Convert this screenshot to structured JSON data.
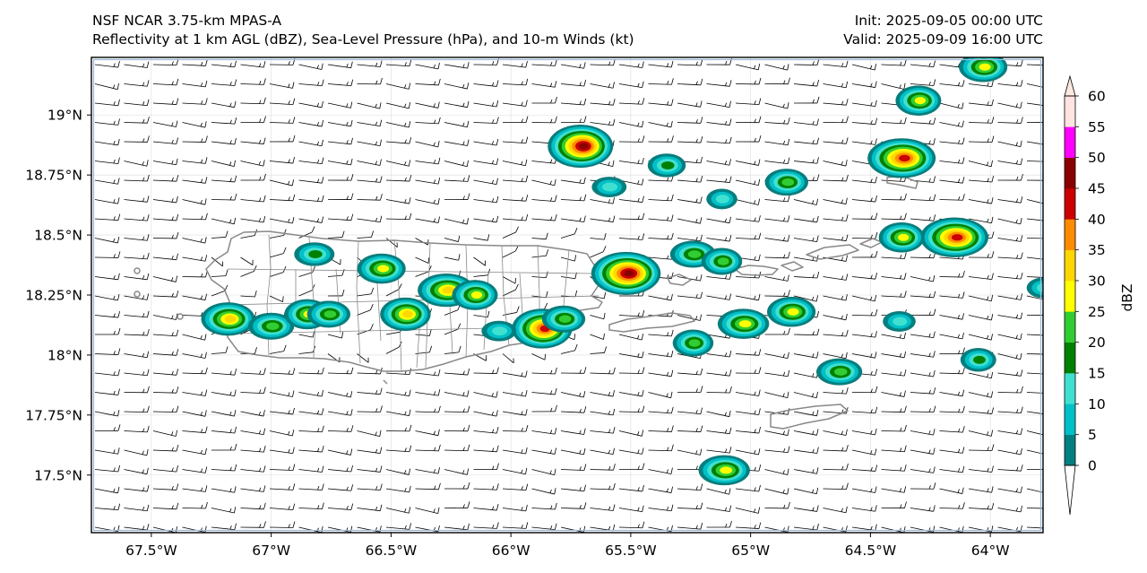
{
  "title": {
    "left_line1": "NSF NCAR 3.75-km MPAS-A",
    "left_line2": "Reflectivity at 1 km AGL (dBZ), Sea-Level Pressure (hPa), and 10-m Winds (kt)",
    "right_line1": "Init: 2025-09-05 00:00 UTC",
    "right_line2": "Valid: 2025-09-09 16:00 UTC"
  },
  "map": {
    "lon_range": [
      -67.75,
      -63.78
    ],
    "lat_range": [
      17.26,
      19.24
    ],
    "lon_ticks": [
      {
        "value": -67.5,
        "label": "67.5°W"
      },
      {
        "value": -67.0,
        "label": "67°W"
      },
      {
        "value": -66.5,
        "label": "66.5°W"
      },
      {
        "value": -66.0,
        "label": "66°W"
      },
      {
        "value": -65.5,
        "label": "65.5°W"
      },
      {
        "value": -65.0,
        "label": "65°W"
      },
      {
        "value": -64.5,
        "label": "64.5°W"
      },
      {
        "value": -64.0,
        "label": "64°W"
      }
    ],
    "lat_ticks": [
      {
        "value": 19.0,
        "label": "19°N"
      },
      {
        "value": 18.75,
        "label": "18.75°N"
      },
      {
        "value": 18.5,
        "label": "18.5°N"
      },
      {
        "value": 18.25,
        "label": "18.25°N"
      },
      {
        "value": 18.0,
        "label": "18°N"
      },
      {
        "value": 17.75,
        "label": "17.75°N"
      },
      {
        "value": 17.5,
        "label": "17.5°N"
      }
    ],
    "coast_color": "#888888",
    "gridline_color": "#dcdcdc"
  },
  "colorbar": {
    "label": "dBZ",
    "extend": "both",
    "levels": [
      0,
      5,
      10,
      15,
      20,
      25,
      30,
      35,
      40,
      45,
      50,
      55,
      60
    ],
    "tick_labels": [
      "0",
      "5",
      "10",
      "15",
      "20",
      "25",
      "30",
      "35",
      "40",
      "45",
      "50",
      "55",
      "60"
    ],
    "colors": [
      "#008080",
      "#00c0c8",
      "#40e0d0",
      "#008000",
      "#32cd32",
      "#ffff00",
      "#ffd700",
      "#ff8c00",
      "#cc0000",
      "#8b0000",
      "#ff00ff",
      "#ffe4e1"
    ],
    "under_color": "#ffffff",
    "over_color": "#ffe8e0"
  },
  "winds": {
    "barb_color": "#000000",
    "typical_direction": "east",
    "typical_speed_kt": 15
  },
  "echoes": [
    {
      "lon": -65.71,
      "lat": 18.87,
      "peak_dbz": 45
    },
    {
      "lon": -65.35,
      "lat": 18.79,
      "peak_dbz": 15
    },
    {
      "lon": -65.59,
      "lat": 18.7,
      "peak_dbz": 10
    },
    {
      "lon": -65.12,
      "lat": 18.65,
      "peak_dbz": 10
    },
    {
      "lon": -64.85,
      "lat": 18.72,
      "peak_dbz": 20
    },
    {
      "lon": -64.37,
      "lat": 18.82,
      "peak_dbz": 40
    },
    {
      "lon": -64.3,
      "lat": 19.06,
      "peak_dbz": 25
    },
    {
      "lon": -64.03,
      "lat": 19.2,
      "peak_dbz": 25
    },
    {
      "lon": -64.15,
      "lat": 18.49,
      "peak_dbz": 40
    },
    {
      "lon": -64.37,
      "lat": 18.49,
      "peak_dbz": 25
    },
    {
      "lon": -65.52,
      "lat": 18.34,
      "peak_dbz": 45
    },
    {
      "lon": -65.24,
      "lat": 18.42,
      "peak_dbz": 20
    },
    {
      "lon": -65.12,
      "lat": 18.39,
      "peak_dbz": 20
    },
    {
      "lon": -64.83,
      "lat": 18.18,
      "peak_dbz": 25
    },
    {
      "lon": -65.03,
      "lat": 18.13,
      "peak_dbz": 25
    },
    {
      "lon": -65.24,
      "lat": 18.05,
      "peak_dbz": 20
    },
    {
      "lon": -64.38,
      "lat": 18.14,
      "peak_dbz": 10
    },
    {
      "lon": -64.63,
      "lat": 17.93,
      "peak_dbz": 20
    },
    {
      "lon": -64.05,
      "lat": 17.98,
      "peak_dbz": 15
    },
    {
      "lon": -63.78,
      "lat": 18.28,
      "peak_dbz": 10
    },
    {
      "lon": -65.11,
      "lat": 17.52,
      "peak_dbz": 25
    },
    {
      "lon": -65.87,
      "lat": 18.11,
      "peak_dbz": 40
    },
    {
      "lon": -65.78,
      "lat": 18.15,
      "peak_dbz": 20
    },
    {
      "lon": -66.27,
      "lat": 18.27,
      "peak_dbz": 30
    },
    {
      "lon": -66.15,
      "lat": 18.25,
      "peak_dbz": 25
    },
    {
      "lon": -66.54,
      "lat": 18.36,
      "peak_dbz": 25
    },
    {
      "lon": -66.82,
      "lat": 18.42,
      "peak_dbz": 15
    },
    {
      "lon": -66.44,
      "lat": 18.17,
      "peak_dbz": 30
    },
    {
      "lon": -67.18,
      "lat": 18.15,
      "peak_dbz": 30
    },
    {
      "lon": -67.0,
      "lat": 18.12,
      "peak_dbz": 20
    },
    {
      "lon": -66.85,
      "lat": 18.17,
      "peak_dbz": 25
    },
    {
      "lon": -66.76,
      "lat": 18.17,
      "peak_dbz": 20
    },
    {
      "lon": -66.05,
      "lat": 18.1,
      "peak_dbz": 10
    }
  ]
}
